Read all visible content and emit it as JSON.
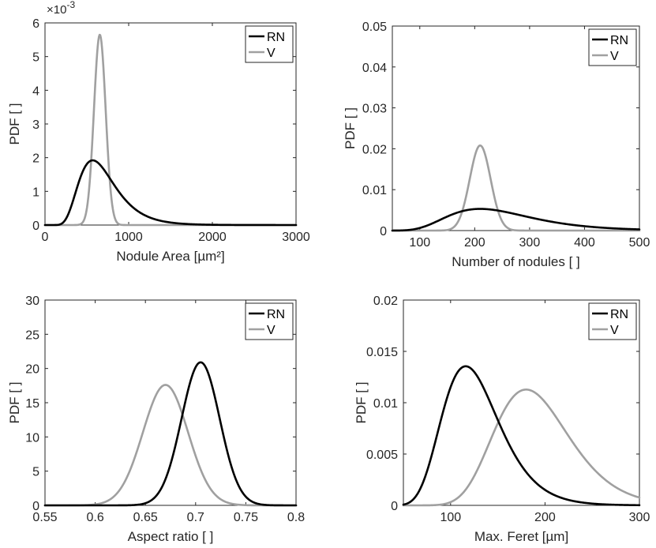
{
  "chart_data": [
    {
      "type": "line",
      "xlabel": "Nodule Area [µm²]",
      "ylabel": "PDF [ ]",
      "xlim": [
        0,
        3000
      ],
      "ylim": [
        0,
        6
      ],
      "xticks": [
        0,
        1000,
        2000,
        3000
      ],
      "yticks": [
        0,
        1,
        2,
        3,
        4,
        5,
        6
      ],
      "xtick_labels": [
        "0",
        "1000",
        "2000",
        "3000"
      ],
      "ytick_labels": [
        "0",
        "1",
        "2",
        "3",
        "4",
        "5",
        "6"
      ],
      "y_exponent_label": "×10",
      "y_exponent_power": "-3",
      "legend": "top-right",
      "series": [
        {
          "name": "RN",
          "color": "#000000",
          "dist": "lognormal",
          "peak_x": 570,
          "sigma": 0.38,
          "peak_y": 1.92
        },
        {
          "name": "V",
          "color": "#a0a0a0",
          "dist": "normal",
          "mean": 655,
          "sd": 70,
          "peak_y": 5.65
        }
      ]
    },
    {
      "type": "line",
      "xlabel": "Number of nodules [ ]",
      "ylabel": "PDF [ ]",
      "xlim": [
        50,
        500
      ],
      "ylim": [
        0,
        0.05
      ],
      "xticks": [
        100,
        200,
        300,
        400,
        500
      ],
      "yticks": [
        0,
        0.01,
        0.02,
        0.03,
        0.04,
        0.05
      ],
      "xtick_labels": [
        "100",
        "200",
        "300",
        "400",
        "500"
      ],
      "ytick_labels": [
        "0",
        "0.01",
        "0.02",
        "0.03",
        "0.04",
        "0.05"
      ],
      "legend": "top-right",
      "series": [
        {
          "name": "RN",
          "color": "#000000",
          "dist": "lognormal",
          "peak_x": 210,
          "sigma": 0.36,
          "peak_y": 0.0053
        },
        {
          "name": "V",
          "color": "#a0a0a0",
          "dist": "normal",
          "mean": 210,
          "sd": 19,
          "peak_y": 0.0208
        }
      ]
    },
    {
      "type": "line",
      "xlabel": "Aspect ratio [ ]",
      "ylabel": "PDF [ ]",
      "xlim": [
        0.55,
        0.8
      ],
      "ylim": [
        0,
        30
      ],
      "xticks": [
        0.55,
        0.6,
        0.65,
        0.7,
        0.75,
        0.8
      ],
      "yticks": [
        0,
        5,
        10,
        15,
        20,
        25,
        30
      ],
      "xtick_labels": [
        "0.55",
        "0.6",
        "0.65",
        "0.7",
        "0.75",
        "0.8"
      ],
      "ytick_labels": [
        "0",
        "5",
        "10",
        "15",
        "20",
        "25",
        "30"
      ],
      "legend": "top-right",
      "series": [
        {
          "name": "RN",
          "color": "#000000",
          "dist": "normal",
          "mean": 0.705,
          "sd": 0.019,
          "peak_y": 20.9
        },
        {
          "name": "V",
          "color": "#a0a0a0",
          "dist": "normal",
          "mean": 0.67,
          "sd": 0.0225,
          "peak_y": 17.6
        }
      ]
    },
    {
      "type": "line",
      "xlabel": "Max. Feret [µm]",
      "ylabel": "PDF [ ]",
      "xlim": [
        50,
        300
      ],
      "ylim": [
        0,
        0.02
      ],
      "xticks": [
        100,
        200,
        300
      ],
      "yticks": [
        0,
        0.005,
        0.01,
        0.015,
        0.02
      ],
      "xtick_labels": [
        "100",
        "200",
        "300"
      ],
      "ytick_labels": [
        "0",
        "0.005",
        "0.01",
        "0.015",
        "0.02"
      ],
      "legend": "top-right",
      "series": [
        {
          "name": "RN",
          "color": "#000000",
          "dist": "lognormal",
          "peak_x": 116,
          "sigma": 0.26,
          "peak_y": 0.01355
        },
        {
          "name": "V",
          "color": "#a0a0a0",
          "dist": "lognormal",
          "peak_x": 180,
          "sigma": 0.22,
          "peak_y": 0.01128
        }
      ]
    }
  ]
}
